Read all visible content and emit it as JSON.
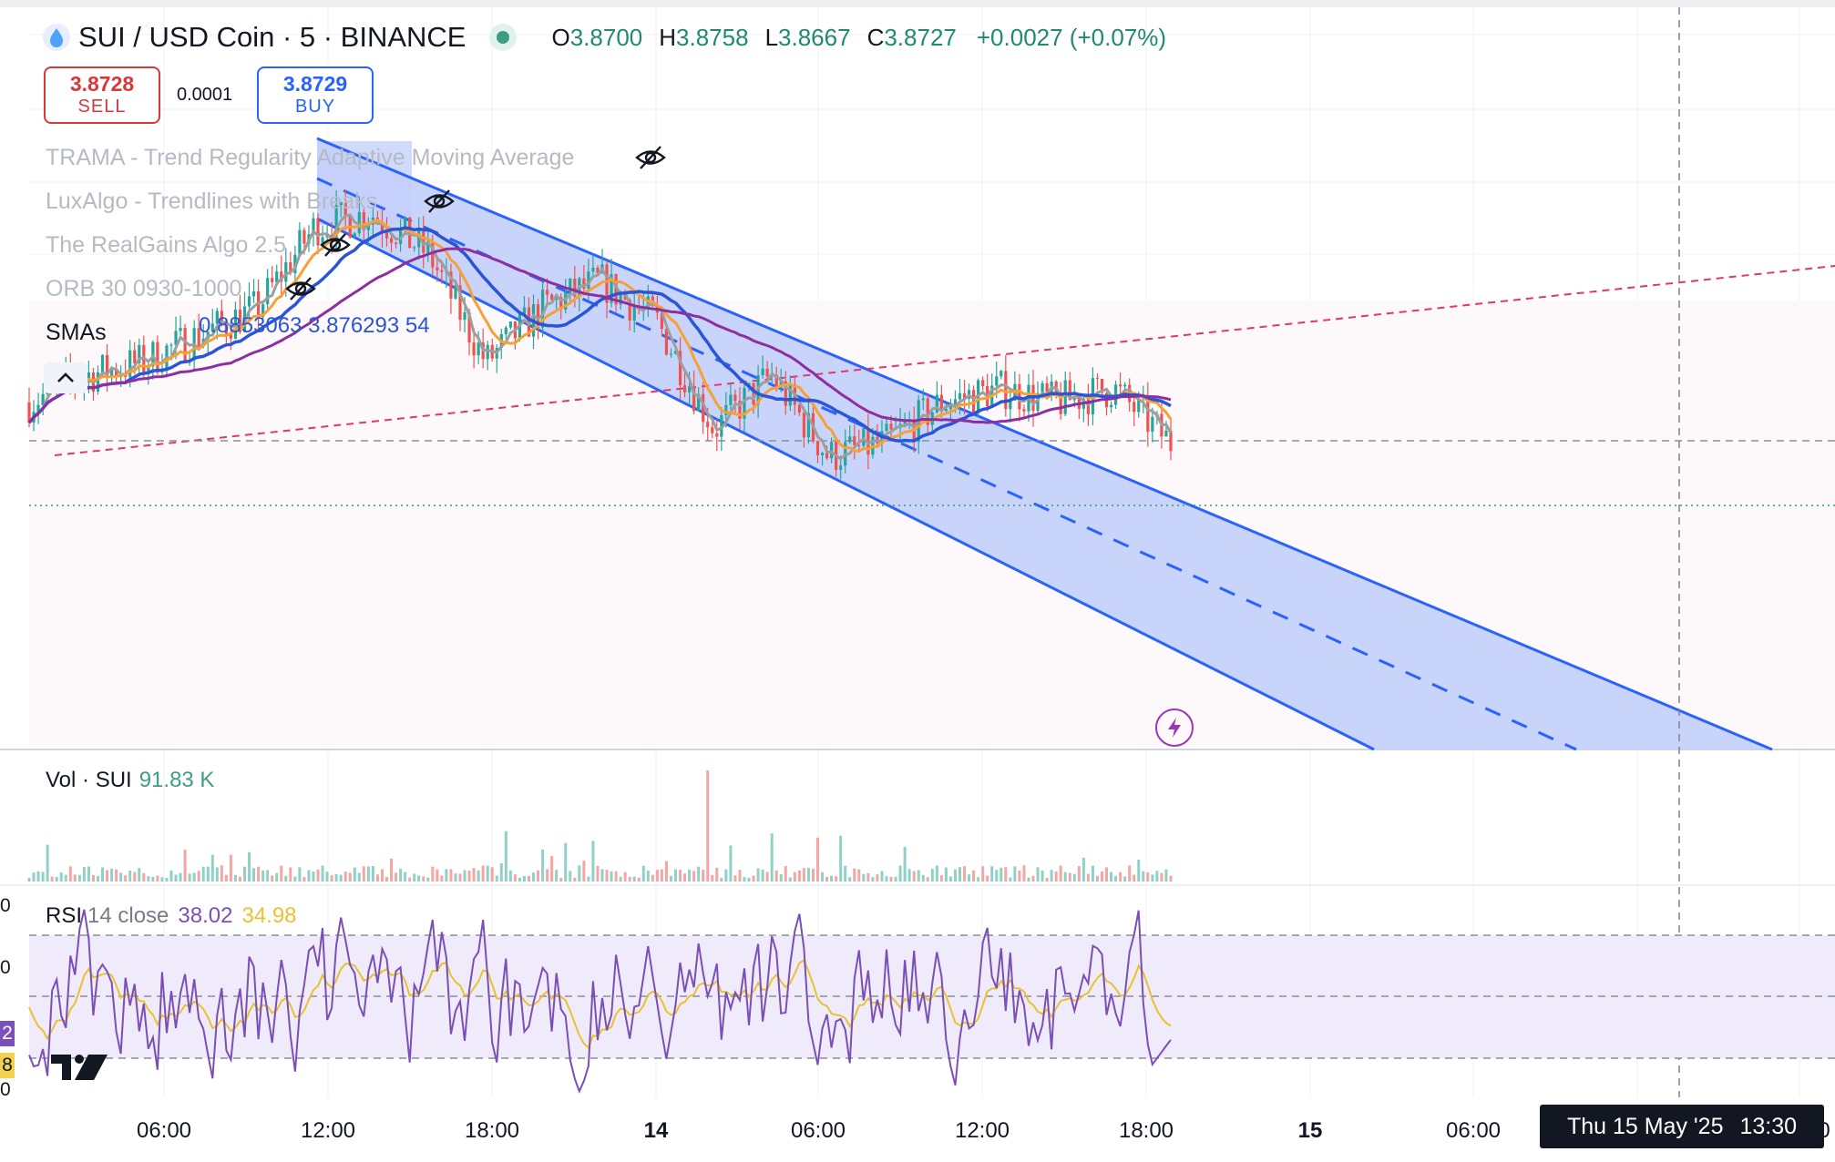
{
  "header": {
    "symbol": "SUI / USD Coin · 5 · BINANCE",
    "open_label": "O",
    "open": "3.8700",
    "high_label": "H",
    "high": "3.8758",
    "low_label": "L",
    "low": "3.8667",
    "close_label": "C",
    "close": "3.8727",
    "change": "+0.0027 (+0.07%)"
  },
  "trade": {
    "sell_price": "3.8728",
    "sell_label": "SELL",
    "spread": "0.0001",
    "buy_price": "3.8729",
    "buy_label": "BUY"
  },
  "indicators": [
    {
      "name": "TRAMA - Trend Regularity Adaptive Moving Average"
    },
    {
      "name": "LuxAlgo - Trendlines with Breaks"
    },
    {
      "name": "The RealGains Algo 2.5"
    },
    {
      "name": "ORB 30 0930-1000"
    }
  ],
  "smas": {
    "label": "SMAs",
    "values": "0.8853063 3.876293 54"
  },
  "volume": {
    "label": "Vol · SUI",
    "value": "91.83 K"
  },
  "rsi": {
    "label": "RSI",
    "params": "14 close",
    "rsi_value": "38.02",
    "ma_value": "34.98"
  },
  "rsi_axis_edge": [
    "0",
    "0",
    "2",
    "8",
    "0"
  ],
  "time_axis": [
    "06:00",
    "12:00",
    "18:00",
    "14",
    "06:00",
    "12:00",
    "18:00",
    "15",
    "06:00"
  ],
  "crosshair": {
    "date": "Thu 15 May '25",
    "time": "13:30",
    "edge": "0"
  },
  "colors": {
    "up": "#26a69a",
    "down": "#ef5350",
    "channel": "#2962ff",
    "channel_fill": "#c3cffb",
    "sma_fast": "#9e9e9e",
    "sma_mid": "#f7a035",
    "sma_slow": "#2a55d6",
    "sma_long": "#8e2fa0",
    "rsi": "#7b4fb8",
    "rsi_ma": "#e8c32e"
  },
  "chart_data": {
    "type": "candlestick",
    "symbol": "SUI / USD Coin",
    "interval": "5",
    "exchange": "BINANCE",
    "x": [
      "06:00",
      "12:00",
      "18:00",
      "14",
      "06:00",
      "12:00",
      "18:00",
      "15",
      "06:00"
    ],
    "price_series": [
      {
        "time": "13 May 04:00",
        "close": 3.9
      },
      {
        "time": "13 May 06:00",
        "close": 3.92
      },
      {
        "time": "13 May 08:00",
        "close": 3.93
      },
      {
        "time": "13 May 10:00",
        "close": 3.95
      },
      {
        "time": "13 May 12:00",
        "close": 3.97
      },
      {
        "time": "13 May 14:00",
        "close": 4.03
      },
      {
        "time": "13 May 16:00",
        "close": 4.04
      },
      {
        "time": "13 May 18:00",
        "close": 4.01
      },
      {
        "time": "13 May 20:00",
        "close": 3.93
      },
      {
        "time": "13 May 22:00",
        "close": 3.97
      },
      {
        "time": "14 May 00:00",
        "close": 3.99
      },
      {
        "time": "14 May 02:00",
        "close": 3.96
      },
      {
        "time": "14 May 04:00",
        "close": 3.88
      },
      {
        "time": "14 May 06:00",
        "close": 3.92
      },
      {
        "time": "14 May 08:00",
        "close": 3.86
      },
      {
        "time": "14 May 10:00",
        "close": 3.87
      },
      {
        "time": "14 May 12:00",
        "close": 3.9
      },
      {
        "time": "14 May 14:00",
        "close": 3.91
      },
      {
        "time": "14 May 16:00",
        "close": 3.9
      },
      {
        "time": "14 May 18:00",
        "close": 3.91
      },
      {
        "time": "14 May 19:00",
        "close": 3.87
      }
    ],
    "last_close": 3.8727,
    "rsi": {
      "period": 14,
      "value": 38.02,
      "ma": 34.98,
      "upper": 70,
      "middle": 50,
      "lower": 30
    },
    "volume_last": "91.83 K",
    "grid": true
  }
}
